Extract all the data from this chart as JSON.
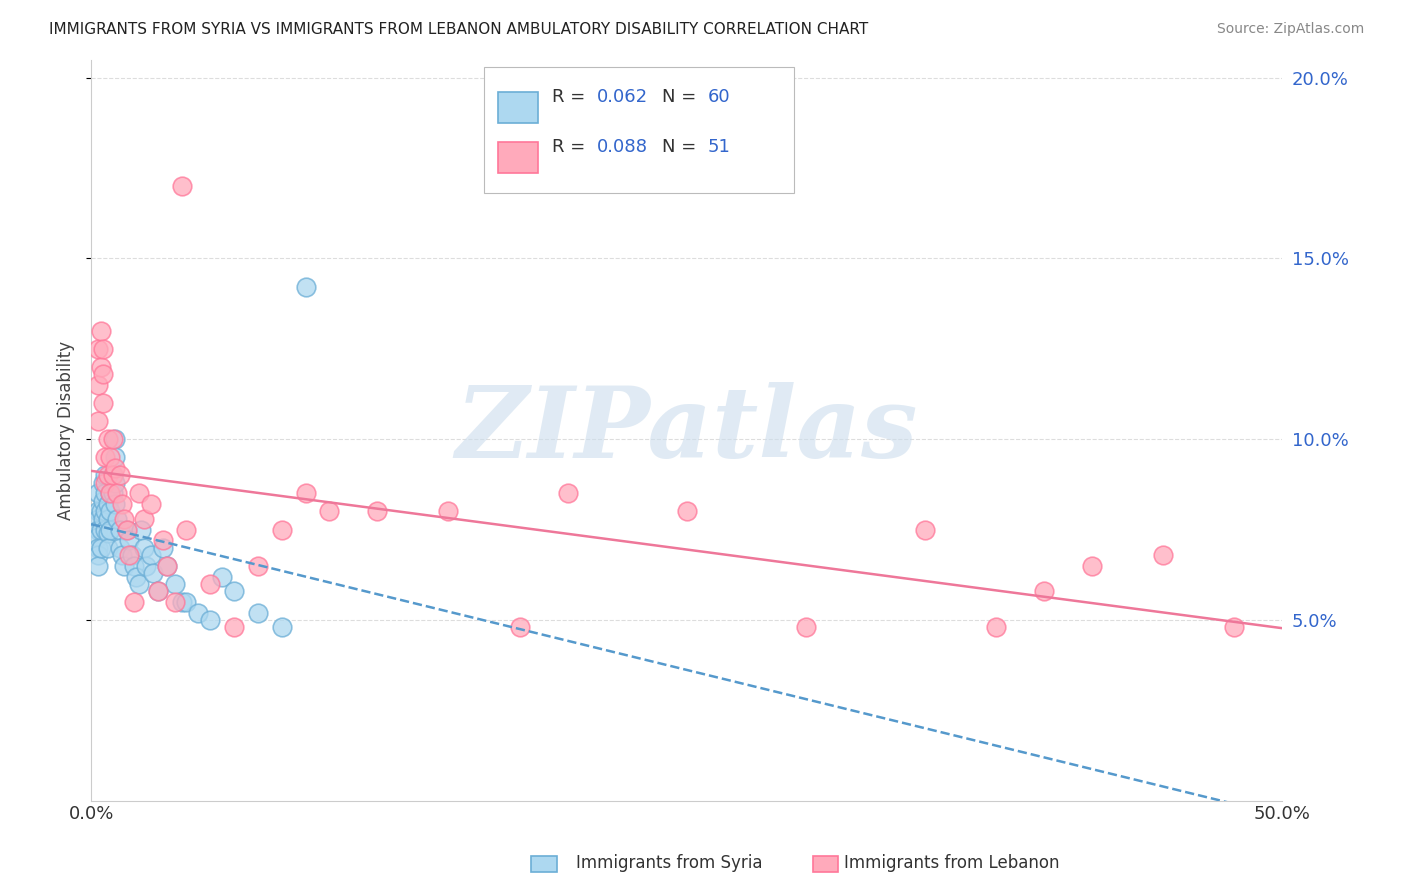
{
  "title": "IMMIGRANTS FROM SYRIA VS IMMIGRANTS FROM LEBANON AMBULATORY DISABILITY CORRELATION CHART",
  "source": "Source: ZipAtlas.com",
  "ylabel": "Ambulatory Disability",
  "xlim": [
    0.0,
    0.5
  ],
  "ylim": [
    0.0,
    0.205
  ],
  "legend_syria_R": "0.062",
  "legend_syria_N": "60",
  "legend_lebanon_R": "0.088",
  "legend_lebanon_N": "51",
  "color_syria_fill": "#ADD8F0",
  "color_syria_edge": "#6BAED6",
  "color_lebanon_fill": "#FFAABB",
  "color_lebanon_edge": "#FF7799",
  "color_syria_line": "#5599CC",
  "color_lebanon_line": "#EE7799",
  "color_blue_text": "#3366CC",
  "background_color": "#FFFFFF",
  "grid_color": "#DDDDDD",
  "watermark_text": "ZIPatlas",
  "watermark_color": "#CCDDED",
  "syria_x": [
    0.003,
    0.003,
    0.003,
    0.003,
    0.003,
    0.003,
    0.003,
    0.003,
    0.004,
    0.004,
    0.004,
    0.005,
    0.005,
    0.005,
    0.006,
    0.006,
    0.006,
    0.006,
    0.007,
    0.007,
    0.007,
    0.007,
    0.008,
    0.008,
    0.008,
    0.009,
    0.009,
    0.01,
    0.01,
    0.01,
    0.01,
    0.011,
    0.012,
    0.012,
    0.013,
    0.014,
    0.015,
    0.016,
    0.017,
    0.018,
    0.019,
    0.02,
    0.021,
    0.022,
    0.023,
    0.025,
    0.026,
    0.028,
    0.03,
    0.032,
    0.035,
    0.038,
    0.04,
    0.045,
    0.05,
    0.055,
    0.06,
    0.07,
    0.08,
    0.09
  ],
  "syria_y": [
    0.085,
    0.08,
    0.078,
    0.075,
    0.073,
    0.07,
    0.068,
    0.065,
    0.08,
    0.075,
    0.07,
    0.088,
    0.083,
    0.078,
    0.09,
    0.085,
    0.08,
    0.075,
    0.082,
    0.078,
    0.074,
    0.07,
    0.085,
    0.08,
    0.075,
    0.09,
    0.085,
    0.1,
    0.095,
    0.088,
    0.082,
    0.078,
    0.075,
    0.07,
    0.068,
    0.065,
    0.075,
    0.072,
    0.068,
    0.065,
    0.062,
    0.06,
    0.075,
    0.07,
    0.065,
    0.068,
    0.063,
    0.058,
    0.07,
    0.065,
    0.06,
    0.055,
    0.055,
    0.052,
    0.05,
    0.062,
    0.058,
    0.052,
    0.048,
    0.142
  ],
  "lebanon_x": [
    0.003,
    0.003,
    0.003,
    0.004,
    0.004,
    0.005,
    0.005,
    0.005,
    0.006,
    0.006,
    0.007,
    0.007,
    0.008,
    0.008,
    0.009,
    0.009,
    0.01,
    0.011,
    0.012,
    0.013,
    0.014,
    0.015,
    0.016,
    0.018,
    0.02,
    0.022,
    0.025,
    0.028,
    0.03,
    0.032,
    0.035,
    0.038,
    0.04,
    0.05,
    0.06,
    0.07,
    0.08,
    0.09,
    0.1,
    0.12,
    0.15,
    0.18,
    0.2,
    0.25,
    0.3,
    0.35,
    0.38,
    0.4,
    0.42,
    0.45,
    0.48
  ],
  "lebanon_y": [
    0.125,
    0.115,
    0.105,
    0.13,
    0.12,
    0.125,
    0.118,
    0.11,
    0.095,
    0.088,
    0.1,
    0.09,
    0.095,
    0.085,
    0.1,
    0.09,
    0.092,
    0.085,
    0.09,
    0.082,
    0.078,
    0.075,
    0.068,
    0.055,
    0.085,
    0.078,
    0.082,
    0.058,
    0.072,
    0.065,
    0.055,
    0.17,
    0.075,
    0.06,
    0.048,
    0.065,
    0.075,
    0.085,
    0.08,
    0.08,
    0.08,
    0.048,
    0.085,
    0.08,
    0.048,
    0.075,
    0.048,
    0.058,
    0.065,
    0.068,
    0.048
  ]
}
